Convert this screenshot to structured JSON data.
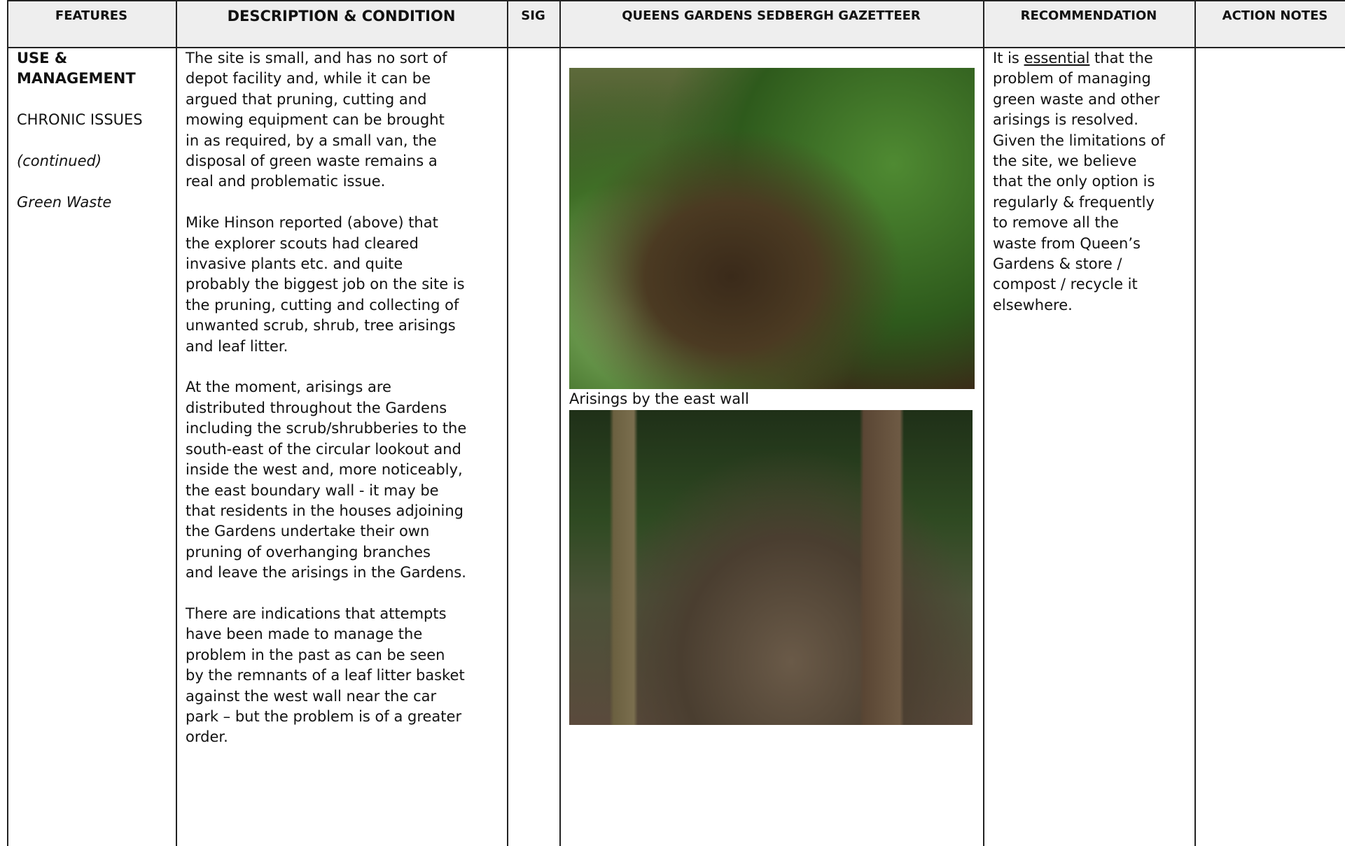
{
  "header": {
    "columns": [
      "FEATURES",
      "DESCRIPTION & CONDITION",
      "SIG",
      "QUEENS GARDENS SEDBERGH GAZETTEER",
      "RECOMMENDATION",
      "ACTION NOTES"
    ]
  },
  "features": {
    "heading": [
      "USE &",
      "MANAGEMENT"
    ],
    "subheading": "CHRONIC ISSUES",
    "note": "(continued)",
    "topic": "Green Waste"
  },
  "description": {
    "paragraphs": [
      [
        "The site is small, and has no sort of",
        "depot facility and, while it can be",
        "argued that pruning, cutting and",
        "mowing equipment can be brought",
        "in as required, by a small van, the",
        "disposal of green waste remains a",
        "real and problematic issue."
      ],
      [
        "Mike Hinson reported (above) that",
        "the explorer scouts had cleared",
        "invasive plants etc. and quite",
        "probably the biggest job on the site is",
        "the pruning, cutting and collecting of",
        "unwanted scrub, shrub, tree arisings",
        "and leaf litter."
      ],
      [
        "At the moment, arisings are",
        "distributed throughout the Gardens",
        "including the scrub/shrubberies to the",
        "south-east of the circular lookout and",
        "inside the west and, more noticeably,",
        "the east boundary wall - it may be",
        "that residents in the houses adjoining",
        "the Gardens undertake their own",
        "pruning of overhanging branches",
        "and leave the arisings in the Gardens."
      ],
      [
        "There are indications that attempts",
        "have been made to manage the",
        "problem in the past as can be seen",
        "by the remnants of a leaf litter basket",
        "against the west wall near the car",
        "park – but the problem is of a greater",
        "order."
      ]
    ]
  },
  "gazetteer": {
    "caption": "Arisings by the east wall"
  },
  "recommendation": {
    "first_line": [
      "It is ",
      "essential",
      " that the"
    ],
    "lines": [
      "problem of managing",
      "green waste and other",
      "arisings is resolved.",
      "Given the limitations of",
      "the site, we believe",
      "that the only option is",
      "regularly & frequently",
      "to remove all the",
      "waste from Queen’s",
      "Gardens & store /",
      "compost / recycle it",
      "elsewhere."
    ]
  }
}
